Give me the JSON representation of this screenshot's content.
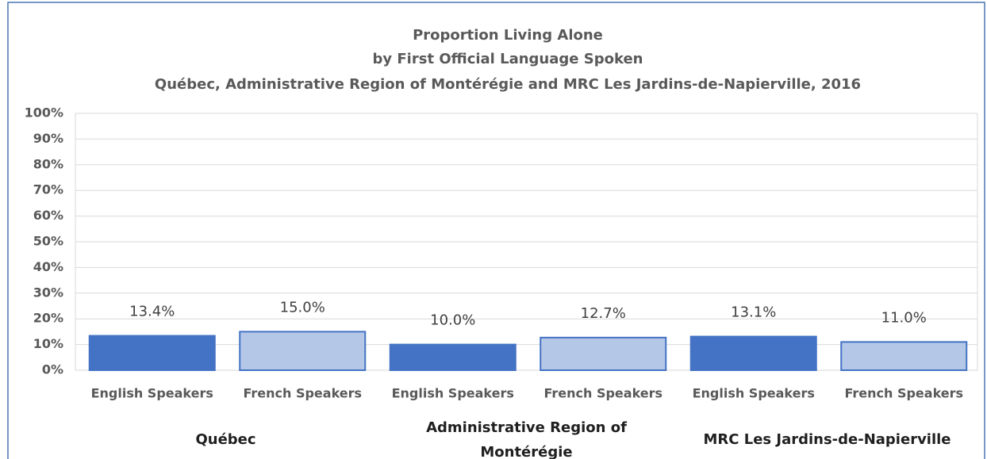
{
  "chart_data": {
    "type": "bar",
    "title": [
      "Proportion Living Alone",
      "by First Official Language Spoken",
      "Québec, Administrative Region of Montérégie and MRC Les Jardins-de-Napierville, 2016"
    ],
    "categories": [
      "Québec",
      "Administrative Region of Montérégie",
      "MRC Les Jardins-de-Napierville"
    ],
    "series": [
      {
        "name": "English Speakers",
        "color": "#4472c4",
        "edge": "#4472c4",
        "values": [
          13.4,
          10.0,
          13.1
        ],
        "value_labels": [
          "13.4%",
          "10.0%",
          "13.1%"
        ]
      },
      {
        "name": "French Speakers",
        "color": "#b4c7e7",
        "edge": "#4472c4",
        "values": [
          15.0,
          12.7,
          11.0
        ],
        "value_labels": [
          "15.0%",
          "12.7%",
          "11.0%"
        ]
      }
    ],
    "ylim": [
      0,
      100
    ],
    "yticks": [
      {
        "value": 0,
        "label": "0%"
      },
      {
        "value": 10,
        "label": "10%"
      },
      {
        "value": 20,
        "label": "20%"
      },
      {
        "value": 30,
        "label": "30%"
      },
      {
        "value": 40,
        "label": "40%"
      },
      {
        "value": 50,
        "label": "50%"
      },
      {
        "value": 60,
        "label": "60%"
      },
      {
        "value": 70,
        "label": "70%"
      },
      {
        "value": 80,
        "label": "80%"
      },
      {
        "value": 90,
        "label": "90%"
      },
      {
        "value": 100,
        "label": "100%"
      }
    ],
    "grid": true
  }
}
